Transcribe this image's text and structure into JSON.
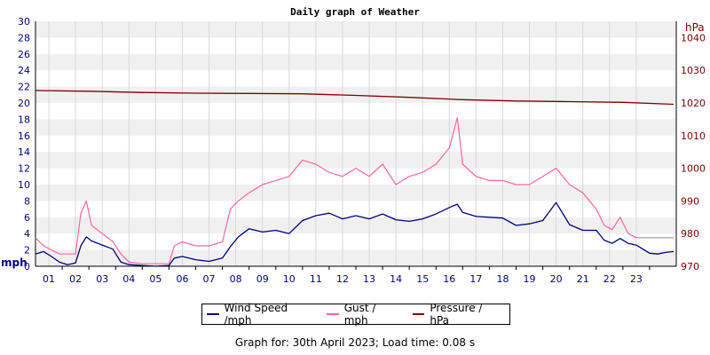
{
  "chart_data": {
    "type": "line",
    "title": "Daily graph of Weather",
    "x_ticks": [
      "01",
      "02",
      "03",
      "04",
      "05",
      "06",
      "07",
      "08",
      "09",
      "10",
      "11",
      "12",
      "13",
      "14",
      "15",
      "16",
      "17",
      "18",
      "19",
      "20",
      "21",
      "22",
      "23"
    ],
    "x_range_hours": [
      0,
      24
    ],
    "y_left": {
      "label": "mph",
      "range": [
        0,
        30
      ],
      "ticks": [
        0,
        2,
        4,
        6,
        8,
        10,
        12,
        14,
        16,
        18,
        20,
        22,
        24,
        26,
        28,
        30
      ]
    },
    "y_right": {
      "label": "hPa",
      "range": [
        970,
        1045
      ],
      "ticks": [
        970,
        980,
        990,
        1000,
        1010,
        1020,
        1030,
        1040
      ]
    },
    "grid": "horizontal bands",
    "legend_position": "bottom",
    "series": [
      {
        "name": "Wind Speed /mph",
        "axis": "left",
        "color": "#000080",
        "x": [
          0,
          0.3,
          0.6,
          0.9,
          1.2,
          1.5,
          1.7,
          1.9,
          2.1,
          2.5,
          2.9,
          3.2,
          3.5,
          4.0,
          4.5,
          5.0,
          5.2,
          5.5,
          6.0,
          6.5,
          7.0,
          7.3,
          7.6,
          8.0,
          8.5,
          9.0,
          9.5,
          10.0,
          10.5,
          11.0,
          11.5,
          12.0,
          12.5,
          13.0,
          13.5,
          14.0,
          14.5,
          15.0,
          15.5,
          15.8,
          16.0,
          16.5,
          17.0,
          17.5,
          18.0,
          18.5,
          19.0,
          19.5,
          20.0,
          20.5,
          21.0,
          21.3,
          21.6,
          21.9,
          22.2,
          22.5,
          23.0,
          23.3,
          23.6,
          23.9
        ],
        "y": [
          1.5,
          1.8,
          1.2,
          0.5,
          0.2,
          0.4,
          2.5,
          3.6,
          3.1,
          2.6,
          2.1,
          0.5,
          0.2,
          0.1,
          0,
          0.1,
          1,
          1.2,
          0.8,
          0.6,
          1,
          2.4,
          3.6,
          4.6,
          4.2,
          4.4,
          4,
          5.6,
          6.2,
          6.5,
          5.8,
          6.2,
          5.8,
          6.4,
          5.7,
          5.5,
          5.8,
          6.4,
          7.2,
          7.6,
          6.6,
          6.1,
          6,
          5.9,
          5,
          5.2,
          5.6,
          7.8,
          5.1,
          4.4,
          4.4,
          3.2,
          2.8,
          3.4,
          2.8,
          2.6,
          1.6,
          1.5,
          1.7,
          1.8
        ]
      },
      {
        "name": "Gust / mph",
        "axis": "left",
        "color": "#ff6699",
        "x": [
          0,
          0.3,
          0.6,
          0.9,
          1.2,
          1.5,
          1.7,
          1.9,
          2.1,
          2.5,
          2.9,
          3.2,
          3.5,
          4.0,
          4.5,
          5.0,
          5.2,
          5.5,
          6.0,
          6.5,
          7.0,
          7.3,
          7.6,
          8.0,
          8.5,
          9.0,
          9.5,
          10.0,
          10.5,
          11.0,
          11.5,
          12.0,
          12.5,
          13.0,
          13.5,
          14.0,
          14.5,
          15.0,
          15.5,
          15.8,
          16.0,
          16.5,
          17.0,
          17.5,
          18.0,
          18.5,
          19.0,
          19.5,
          20.0,
          20.5,
          21.0,
          21.3,
          21.6,
          21.9,
          22.2,
          22.5,
          23.0,
          23.3,
          23.6,
          23.9
        ],
        "y": [
          3.5,
          2.5,
          2,
          1.5,
          1.5,
          1.5,
          6.5,
          8,
          5,
          4,
          3,
          1.5,
          0.5,
          0.3,
          0.3,
          0.3,
          2.5,
          3,
          2.5,
          2.5,
          3,
          7,
          8,
          9,
          10,
          10.5,
          11,
          13,
          12.5,
          11.5,
          11,
          12,
          11,
          12.5,
          10,
          11,
          11.5,
          12.5,
          14.5,
          18.2,
          12.5,
          11,
          10.5,
          10.5,
          10,
          10,
          11,
          12,
          10,
          9,
          7,
          5,
          4.5,
          6,
          4,
          3.5,
          3.5,
          3.5,
          3.5,
          3.5
        ]
      },
      {
        "name": "Pressure / hPa",
        "axis": "right",
        "color": "#800000",
        "x": [
          0,
          2,
          4,
          6,
          8,
          10,
          12,
          14,
          16,
          18,
          20,
          22,
          23.9
        ],
        "y": [
          1023.8,
          1023.6,
          1023.2,
          1023,
          1022.9,
          1022.8,
          1022.3,
          1021.7,
          1021,
          1020.6,
          1020.4,
          1020.2,
          1019.6
        ]
      }
    ]
  },
  "footer": {
    "text": "Graph for: 30th April 2023; Load time: 0.08 s"
  }
}
